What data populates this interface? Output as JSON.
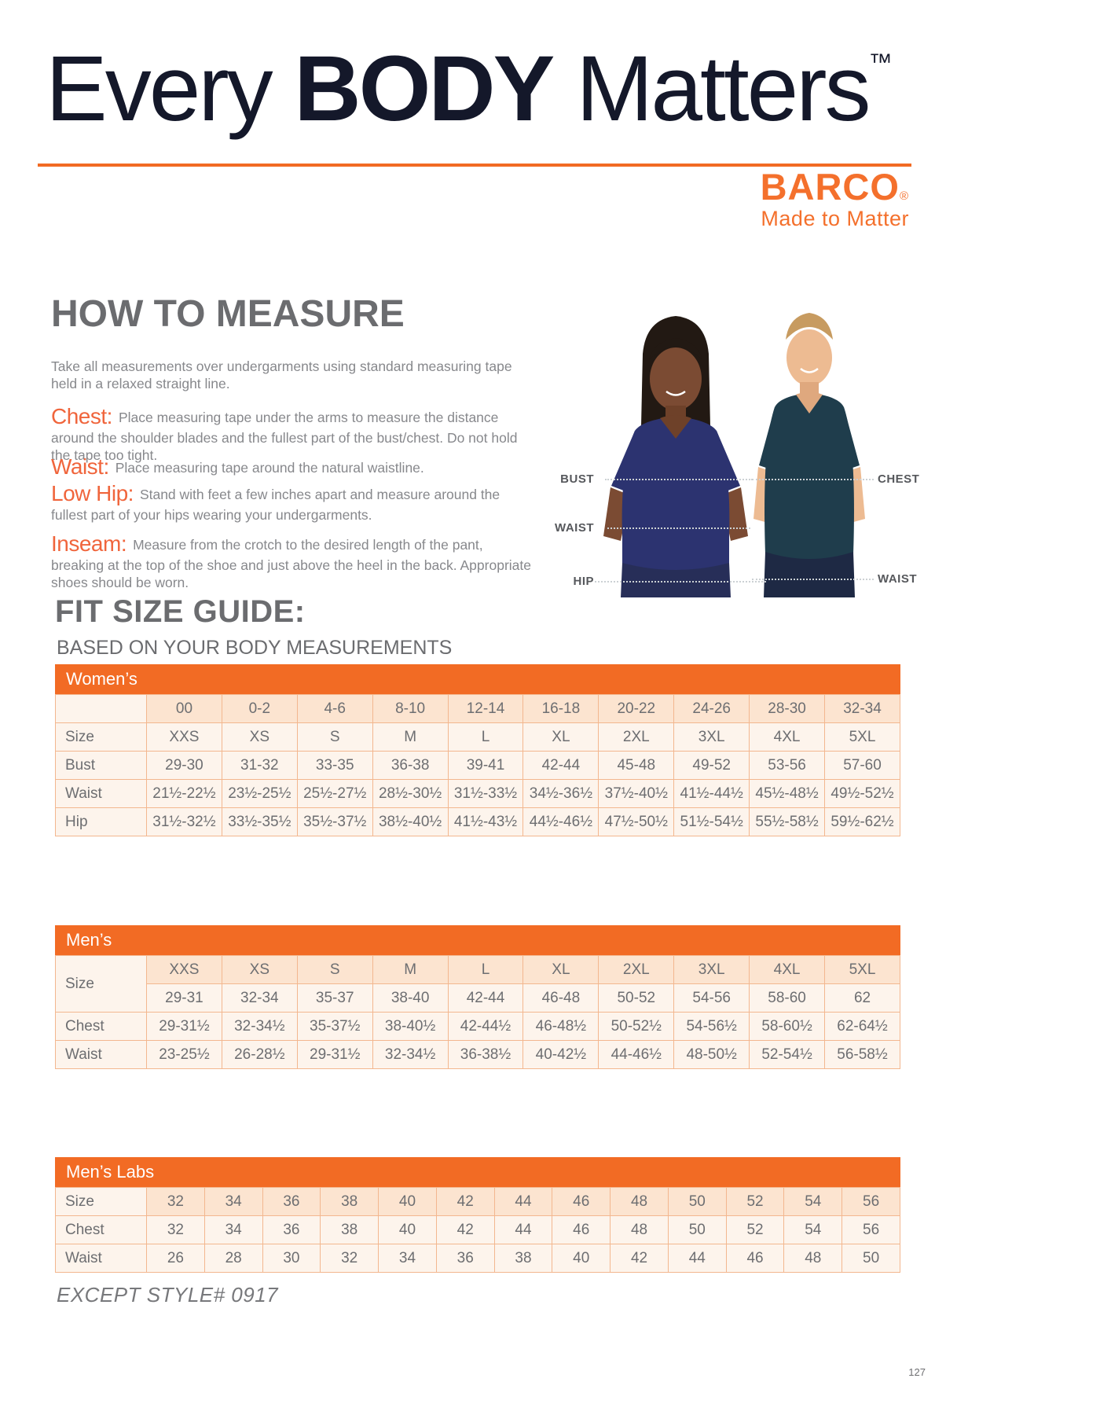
{
  "colors": {
    "accent": "#f26b24",
    "brand-orange": "#f4702c",
    "term-orange": "#f0653c",
    "heading-gray": "#6b6c6f",
    "body-gray": "#87888c",
    "table-text": "#6d6e71",
    "table-border": "#f3b78f",
    "cell-peach": "#fce4d0",
    "cell-cream": "#fdf4ec",
    "title-navy": "#14182a"
  },
  "header": {
    "title_pre": "Every ",
    "title_bold": "BODY",
    "title_post": " Matters",
    "trademark": "™"
  },
  "brand": {
    "name": "BARCO",
    "registered": "®",
    "tagline": "Made to Matter"
  },
  "how_to_measure": {
    "heading": "HOW TO MEASURE",
    "intro": "Take all measurements over undergarments using standard measuring tape held in a relaxed straight line.",
    "definitions": [
      {
        "term": "Chest:",
        "text": "Place measuring tape under the arms to measure the distance around the shoulder blades and the fullest part of the bust/chest. Do not hold the tape too tight."
      },
      {
        "term": "Waist:",
        "text": "Place measuring tape around the natural waistline."
      },
      {
        "term": "Low Hip:",
        "text": "Stand with feet a few inches apart and measure around the fullest part of your hips wearing your undergarments."
      },
      {
        "term": "Inseam:",
        "text": "Measure from the crotch to the desired length of the pant, breaking at the top of the shoe and just above the heel in the back. Appropriate shoes should be worn."
      }
    ]
  },
  "figure": {
    "labels": {
      "bust": "BUST",
      "waist_left": "WAIST",
      "hip": "HIP",
      "chest": "CHEST",
      "waist_right": "WAIST"
    }
  },
  "fit_guide": {
    "heading": "FIT SIZE GUIDE:",
    "subheading": "BASED ON YOUR BODY MEASUREMENTS"
  },
  "tables": {
    "women": {
      "title": "Women’s",
      "rows": [
        {
          "label": "",
          "h": true,
          "values": [
            "00",
            "0-2",
            "4-6",
            "8-10",
            "12-14",
            "16-18",
            "20-22",
            "24-26",
            "28-30",
            "32-34"
          ]
        },
        {
          "label": "Size",
          "values": [
            "XXS",
            "XS",
            "S",
            "M",
            "L",
            "XL",
            "2XL",
            "3XL",
            "4XL",
            "5XL"
          ]
        },
        {
          "label": "Bust",
          "values": [
            "29-30",
            "31-32",
            "33-35",
            "36-38",
            "39-41",
            "42-44",
            "45-48",
            "49-52",
            "53-56",
            "57-60"
          ]
        },
        {
          "label": "Waist",
          "values": [
            "21½-22½",
            "23½-25½",
            "25½-27½",
            "28½-30½",
            "31½-33½",
            "34½-36½",
            "37½-40½",
            "41½-44½",
            "45½-48½",
            "49½-52½"
          ]
        },
        {
          "label": "Hip",
          "values": [
            "31½-32½",
            "33½-35½",
            "35½-37½",
            "38½-40½",
            "41½-43½",
            "44½-46½",
            "47½-50½",
            "51½-54½",
            "55½-58½",
            "59½-62½"
          ]
        }
      ]
    },
    "men": {
      "title": "Men’s",
      "rows": [
        {
          "label": "Size",
          "labelRowspan": 2,
          "h": true,
          "values": [
            "XXS",
            "XS",
            "S",
            "M",
            "L",
            "XL",
            "2XL",
            "3XL",
            "4XL",
            "5XL"
          ]
        },
        {
          "values": [
            "29-31",
            "32-34",
            "35-37",
            "38-40",
            "42-44",
            "46-48",
            "50-52",
            "54-56",
            "58-60",
            "62"
          ]
        },
        {
          "label": "Chest",
          "values": [
            "29-31½",
            "32-34½",
            "35-37½",
            "38-40½",
            "42-44½",
            "46-48½",
            "50-52½",
            "54-56½",
            "58-60½",
            "62-64½"
          ]
        },
        {
          "label": "Waist",
          "values": [
            "23-25½",
            "26-28½",
            "29-31½",
            "32-34½",
            "36-38½",
            "40-42½",
            "44-46½",
            "48-50½",
            "52-54½",
            "56-58½"
          ]
        }
      ]
    },
    "mens_labs": {
      "title": "Men’s Labs",
      "rows": [
        {
          "label": "Size",
          "h": true,
          "values": [
            "32",
            "34",
            "36",
            "38",
            "40",
            "42",
            "44",
            "46",
            "48",
            "50",
            "52",
            "54",
            "56"
          ]
        },
        {
          "label": "Chest",
          "values": [
            "32",
            "34",
            "36",
            "38",
            "40",
            "42",
            "44",
            "46",
            "48",
            "50",
            "52",
            "54",
            "56"
          ]
        },
        {
          "label": "Waist",
          "values": [
            "26",
            "28",
            "30",
            "32",
            "34",
            "36",
            "38",
            "40",
            "42",
            "44",
            "46",
            "48",
            "50"
          ]
        }
      ]
    }
  },
  "footnote": "EXCEPT STYLE# 0917",
  "page_number": "127"
}
